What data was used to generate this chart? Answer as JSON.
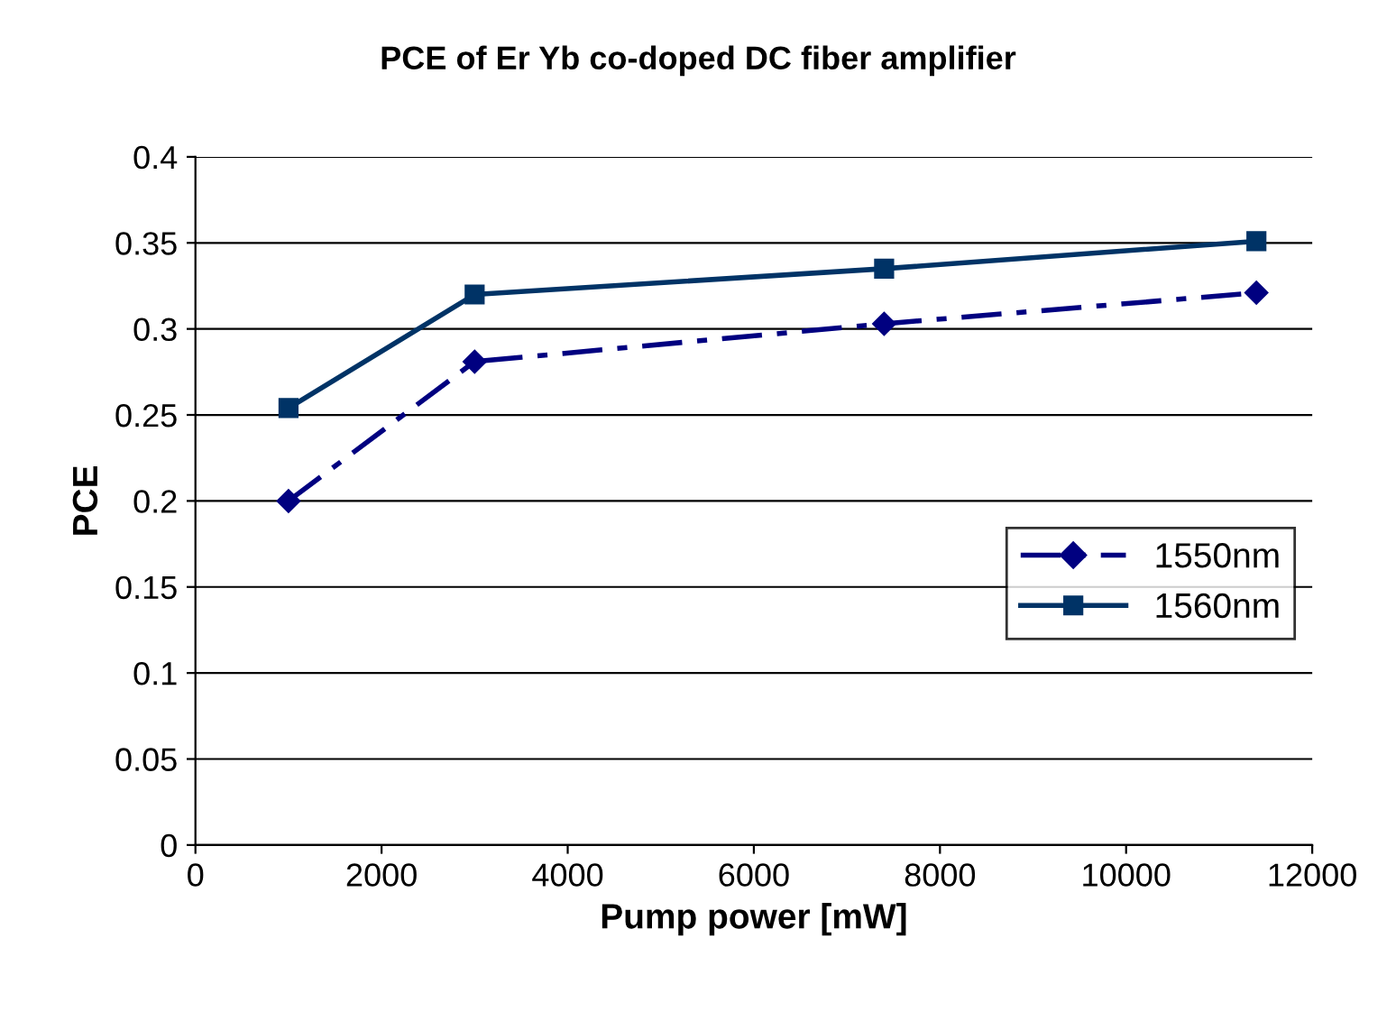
{
  "chart_data": {
    "type": "line",
    "title": "PCE of Er Yb co-doped DC fiber amplifier",
    "xlabel": "Pump power [mW]",
    "ylabel": "PCE",
    "x": [
      1000,
      3000,
      7400,
      11400
    ],
    "series": [
      {
        "name": "1550nm",
        "color": "#000080",
        "values": [
          0.2,
          0.281,
          0.303,
          0.321
        ],
        "marker": "diamond",
        "line_style": "dashed"
      },
      {
        "name": "1560nm",
        "color": "#003366",
        "values": [
          0.254,
          0.32,
          0.335,
          0.351
        ],
        "marker": "square",
        "line_style": "solid"
      }
    ],
    "xlim": [
      0,
      12000
    ],
    "xticks": [
      0,
      2000,
      4000,
      6000,
      8000,
      10000,
      12000
    ],
    "ylim": [
      0,
      0.4
    ],
    "yticks": [
      0,
      0.05,
      0.1,
      0.15,
      0.2,
      0.25,
      0.3,
      0.35,
      0.4
    ],
    "grid": "y",
    "legend": "right"
  }
}
